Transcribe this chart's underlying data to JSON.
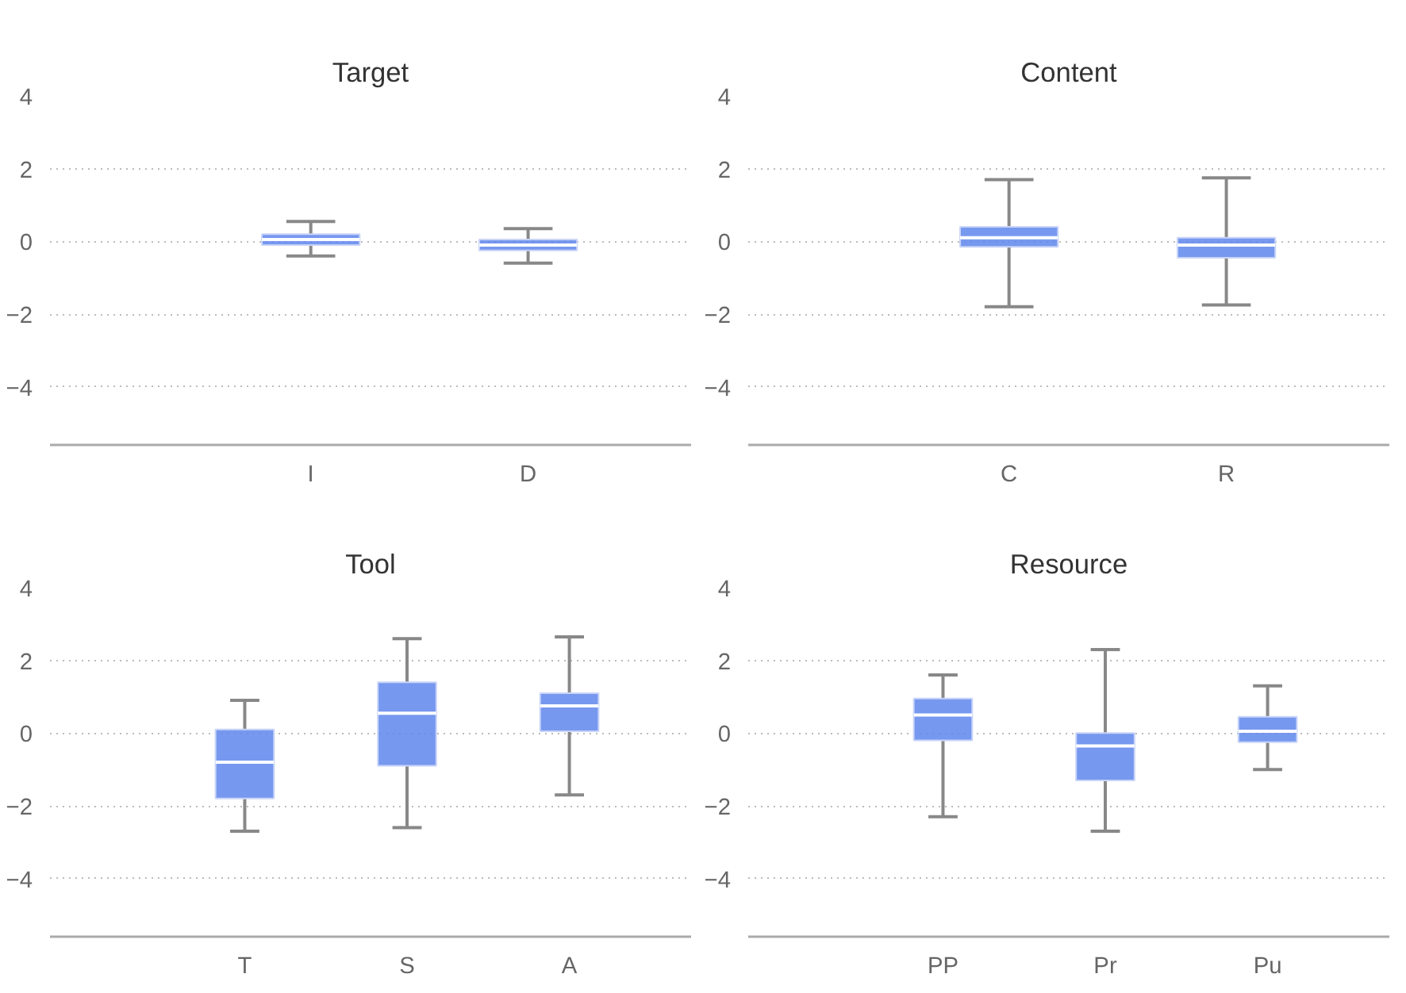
{
  "chart_data": [
    {
      "type": "box",
      "title": "Target",
      "categories": [
        "I",
        "D"
      ],
      "ylim": [
        -5.6,
        4
      ],
      "yticks": [
        -4,
        -2,
        0,
        2,
        4
      ],
      "grid": "y",
      "color": "#5f86ec",
      "boxes": [
        {
          "low": -0.4,
          "q1": -0.1,
          "median": 0.05,
          "q3": 0.2,
          "high": 0.55
        },
        {
          "low": -0.6,
          "q1": -0.25,
          "median": -0.1,
          "q3": 0.05,
          "high": 0.35
        }
      ]
    },
    {
      "type": "box",
      "title": "Content",
      "categories": [
        "C",
        "R"
      ],
      "ylim": [
        -5.6,
        4
      ],
      "yticks": [
        -4,
        -2,
        0,
        2,
        4
      ],
      "grid": "y",
      "color": "#5f86ec",
      "boxes": [
        {
          "low": -1.8,
          "q1": -0.15,
          "median": 0.1,
          "q3": 0.4,
          "high": 1.7
        },
        {
          "low": -1.75,
          "q1": -0.45,
          "median": -0.1,
          "q3": 0.1,
          "high": 1.75
        }
      ]
    },
    {
      "type": "box",
      "title": "Tool",
      "categories": [
        "T",
        "S",
        "A"
      ],
      "ylim": [
        -5.6,
        4
      ],
      "yticks": [
        -4,
        -2,
        0,
        2,
        4
      ],
      "grid": "y",
      "color": "#5f86ec",
      "boxes": [
        {
          "low": -2.7,
          "q1": -1.8,
          "median": -0.8,
          "q3": 0.1,
          "high": 0.9
        },
        {
          "low": -2.6,
          "q1": -0.9,
          "median": 0.55,
          "q3": 1.4,
          "high": 2.6
        },
        {
          "low": -1.7,
          "q1": 0.05,
          "median": 0.75,
          "q3": 1.1,
          "high": 2.65
        }
      ]
    },
    {
      "type": "box",
      "title": "Resource",
      "categories": [
        "PP",
        "Pr",
        "Pu"
      ],
      "ylim": [
        -5.6,
        4
      ],
      "yticks": [
        -4,
        -2,
        0,
        2,
        4
      ],
      "grid": "y",
      "color": "#5f86ec",
      "boxes": [
        {
          "low": -2.3,
          "q1": -0.2,
          "median": 0.5,
          "q3": 0.95,
          "high": 1.6
        },
        {
          "low": -2.7,
          "q1": -1.3,
          "median": -0.35,
          "q3": 0.0,
          "high": 2.3
        },
        {
          "low": -1.0,
          "q1": -0.25,
          "median": 0.05,
          "q3": 0.45,
          "high": 1.3
        }
      ]
    }
  ]
}
